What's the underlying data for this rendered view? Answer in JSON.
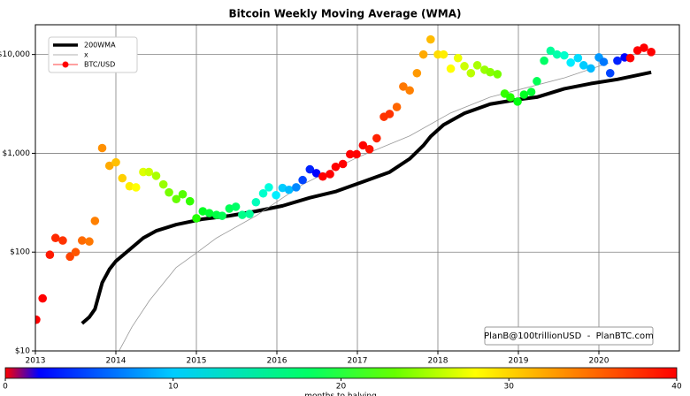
{
  "chart_data": {
    "type": "scatter",
    "title": "Bitcoin Weekly Moving Average (WMA)",
    "xlim": [
      2013,
      2021
    ],
    "xticks": [
      2013,
      2014,
      2015,
      2016,
      2017,
      2018,
      2019,
      2020
    ],
    "ylim": [
      10,
      20000
    ],
    "log_y": true,
    "grid": true,
    "yticks": [
      {
        "value": 10,
        "label": "$10"
      },
      {
        "value": 100,
        "label": "$100"
      },
      {
        "value": 1000,
        "label": "$1,000"
      },
      {
        "value": 10000,
        "label": "$10,000"
      }
    ],
    "legend": "upper left",
    "annotation": "PlanB@100trillionUSD  -  PlanBTC.com",
    "colorbar": {
      "label": "months to halving",
      "lim": [
        0,
        40
      ],
      "ticks": [
        0,
        10,
        20,
        30,
        40
      ],
      "colormap": [
        "#ff0000",
        "#0000ff",
        "#00ccff",
        "#00ff66",
        "#66ff00",
        "#ffff00",
        "#ff9900",
        "#ff0000"
      ]
    },
    "series": [
      {
        "name": "200WMA",
        "type": "line",
        "color": "#000000",
        "x": [
          2013.58,
          2013.67,
          2013.74,
          2013.83,
          2013.92,
          2014.0,
          2014.17,
          2014.34,
          2014.5,
          2014.75,
          2015.08,
          2015.41,
          2015.74,
          2016.07,
          2016.41,
          2016.73,
          2017.07,
          2017.4,
          2017.65,
          2017.82,
          2017.91,
          2018.07,
          2018.33,
          2018.65,
          2018.99,
          2019.23,
          2019.57,
          2019.9,
          2020.23,
          2020.65
        ],
        "values": [
          19,
          22,
          26.5,
          49,
          67,
          81,
          106,
          139,
          164,
          190,
          216,
          233,
          259,
          294,
          355,
          410,
          515,
          645,
          880,
          1200,
          1480,
          1940,
          2540,
          3150,
          3500,
          3700,
          4500,
          5080,
          5600,
          6600
        ]
      },
      {
        "name": "x",
        "type": "line",
        "color": "#999999",
        "x": [
          2014.04,
          2014.2,
          2014.42,
          2014.75,
          2015.0,
          2015.25,
          2015.74,
          2016.32,
          2016.99,
          2017.65,
          2018.15,
          2018.65,
          2019.14,
          2019.57,
          2020.12
        ],
        "values": [
          10,
          17.5,
          32.6,
          70,
          98,
          139,
          233,
          484,
          900,
          1500,
          2540,
          3700,
          4700,
          5800,
          8200
        ]
      },
      {
        "name": "BTC/USD",
        "type": "scatter",
        "color": "#ff0000",
        "x": [
          2013.01,
          2013.09,
          2013.18,
          2013.25,
          2013.34,
          2013.43,
          2013.5,
          2013.58,
          2013.67,
          2013.74,
          2013.83,
          2013.92,
          2014.0,
          2014.08,
          2014.17,
          2014.25,
          2014.34,
          2014.41,
          2014.5,
          2014.59,
          2014.66,
          2014.75,
          2014.83,
          2014.92,
          2015.0,
          2015.08,
          2015.16,
          2015.25,
          2015.32,
          2015.41,
          2015.49,
          2015.57,
          2015.66,
          2015.74,
          2015.83,
          2015.9,
          2015.99,
          2016.07,
          2016.15,
          2016.24,
          2016.32,
          2016.41,
          2016.49,
          2016.57,
          2016.66,
          2016.73,
          2016.82,
          2016.91,
          2016.99,
          2017.07,
          2017.15,
          2017.24,
          2017.33,
          2017.4,
          2017.49,
          2017.57,
          2017.65,
          2017.74,
          2017.82,
          2017.91,
          2018.0,
          2018.07,
          2018.16,
          2018.25,
          2018.33,
          2018.41,
          2018.49,
          2018.58,
          2018.65,
          2018.74,
          2018.83,
          2018.9,
          2018.99,
          2019.07,
          2019.16,
          2019.23,
          2019.32,
          2019.4,
          2019.48,
          2019.57,
          2019.65,
          2019.74,
          2019.81,
          2019.9,
          2020.0,
          2020.06,
          2020.14,
          2020.23,
          2020.32,
          2020.39,
          2020.48,
          2020.56,
          2020.65
        ],
        "values": [
          20.7,
          34,
          94,
          139,
          131,
          90,
          100,
          131,
          128,
          207,
          1130,
          748,
          810,
          560,
          464,
          452,
          647,
          647,
          592,
          484,
          402,
          344,
          385,
          327,
          220,
          259,
          248,
          238,
          233,
          276,
          288,
          238,
          243,
          320,
          393,
          453,
          377,
          446,
          427,
          453,
          536,
          688,
          630,
          582,
          616,
          729,
          780,
          979,
          979,
          1205,
          1100,
          1420,
          2340,
          2500,
          2940,
          4740,
          4330,
          6470,
          10000,
          14200,
          10000,
          10000,
          7180,
          9200,
          7620,
          6470,
          7780,
          7010,
          6620,
          6320,
          4020,
          3690,
          3340,
          3930,
          4180,
          5370,
          8650,
          10900,
          10000,
          9800,
          8280,
          9200,
          7780,
          7230,
          9350,
          8420,
          6470,
          8650,
          9350,
          9200,
          11000,
          11700,
          10600
        ],
        "colors": [
          "#ff0000",
          "#ff0000",
          "#ff1a00",
          "#ff2a00",
          "#ff3300",
          "#ff4400",
          "#ff5500",
          "#ff6a00",
          "#ff7700",
          "#ff8000",
          "#ff9000",
          "#ffaa00",
          "#ffc000",
          "#ffd000",
          "#ffee00",
          "#ffff00",
          "#ddff00",
          "#ccff00",
          "#aaff00",
          "#99ff00",
          "#77ff00",
          "#66ff00",
          "#55ff00",
          "#33ff00",
          "#22ff00",
          "#00ff22",
          "#00ff33",
          "#00ff44",
          "#00ff55",
          "#00ff55",
          "#00ff66",
          "#00ff88",
          "#00ff99",
          "#00ffbb",
          "#00ffcc",
          "#00ffdd",
          "#00eeff",
          "#00ccff",
          "#00bbff",
          "#0088ff",
          "#0044ff",
          "#0022ff",
          "#0000ff",
          "#ff0000",
          "#ff0000",
          "#ff0000",
          "#ff0000",
          "#ff0000",
          "#ff0000",
          "#ff0000",
          "#ff1100",
          "#ff2200",
          "#ff3300",
          "#ff3300",
          "#ff6600",
          "#ff7700",
          "#ff8000",
          "#ff9900",
          "#ffaa00",
          "#ffbb00",
          "#ffdd00",
          "#ffee00",
          "#ffff00",
          "#eeff00",
          "#ccff00",
          "#bbff00",
          "#aaff00",
          "#99ff00",
          "#88ff00",
          "#77ff00",
          "#33ff00",
          "#22ff00",
          "#00ff11",
          "#00ff22",
          "#00ff33",
          "#00ff55",
          "#00ff66",
          "#00ff99",
          "#00ffaa",
          "#00ffcc",
          "#00eeff",
          "#00ddff",
          "#00ccff",
          "#00bbff",
          "#0099ff",
          "#0077ff",
          "#0044ff",
          "#0022ff",
          "#0000ff",
          "#ff0000",
          "#ff0000",
          "#ff0000",
          "#ff0000"
        ]
      }
    ]
  }
}
